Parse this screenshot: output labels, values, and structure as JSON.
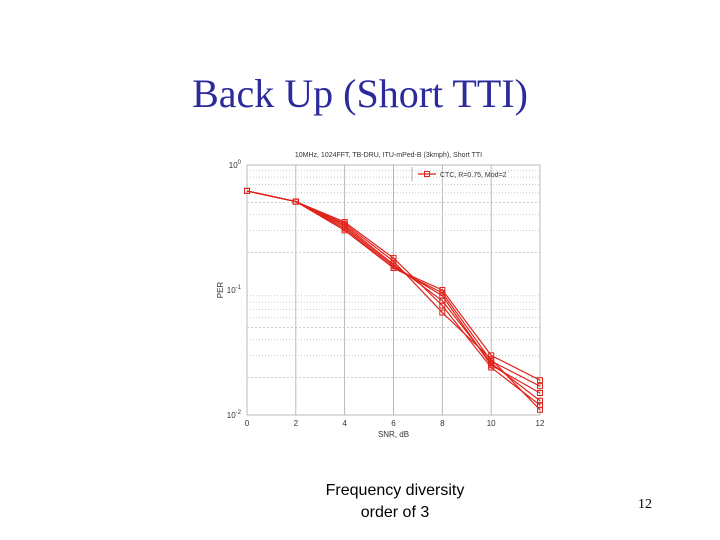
{
  "slide": {
    "title": "Back Up (Short TTI)",
    "caption_line1": "Frequency diversity",
    "caption_line2": "order of 3",
    "page_number": "12"
  },
  "chart_data": {
    "type": "line",
    "title": "10MHz, 1024FFT, TB-DRU, ITU-mPed-B (3kmph), Short TTI",
    "xlabel": "SNR, dB",
    "ylabel": "PER",
    "yscale": "log",
    "xlim": [
      0,
      12
    ],
    "ylim": [
      0.01,
      1
    ],
    "xticks": [
      "0",
      "2",
      "4",
      "6",
      "8",
      "10",
      "12"
    ],
    "yticks": [
      {
        "base": "10",
        "exp": "0"
      },
      {
        "base": "10",
        "exp": "-1"
      },
      {
        "base": "10",
        "exp": "-2"
      }
    ],
    "grid": true,
    "legend_position": "top-right",
    "legend": [
      "CTC, R=0.75, Mod=2"
    ],
    "color": "#e0231b",
    "x": [
      0,
      2,
      4,
      6,
      8,
      10,
      12
    ],
    "series": [
      {
        "values": [
          0.62,
          0.51,
          0.34,
          0.17,
          0.066,
          0.028,
          0.011
        ]
      },
      {
        "values": [
          0.62,
          0.51,
          0.35,
          0.18,
          0.075,
          0.024,
          0.012
        ]
      },
      {
        "values": [
          0.62,
          0.51,
          0.33,
          0.16,
          0.082,
          0.026,
          0.013
        ]
      },
      {
        "values": [
          0.62,
          0.51,
          0.32,
          0.155,
          0.09,
          0.025,
          0.015
        ]
      },
      {
        "values": [
          0.62,
          0.51,
          0.31,
          0.15,
          0.095,
          0.027,
          0.017
        ]
      },
      {
        "values": [
          0.62,
          0.51,
          0.3,
          0.15,
          0.1,
          0.03,
          0.019
        ]
      }
    ]
  }
}
